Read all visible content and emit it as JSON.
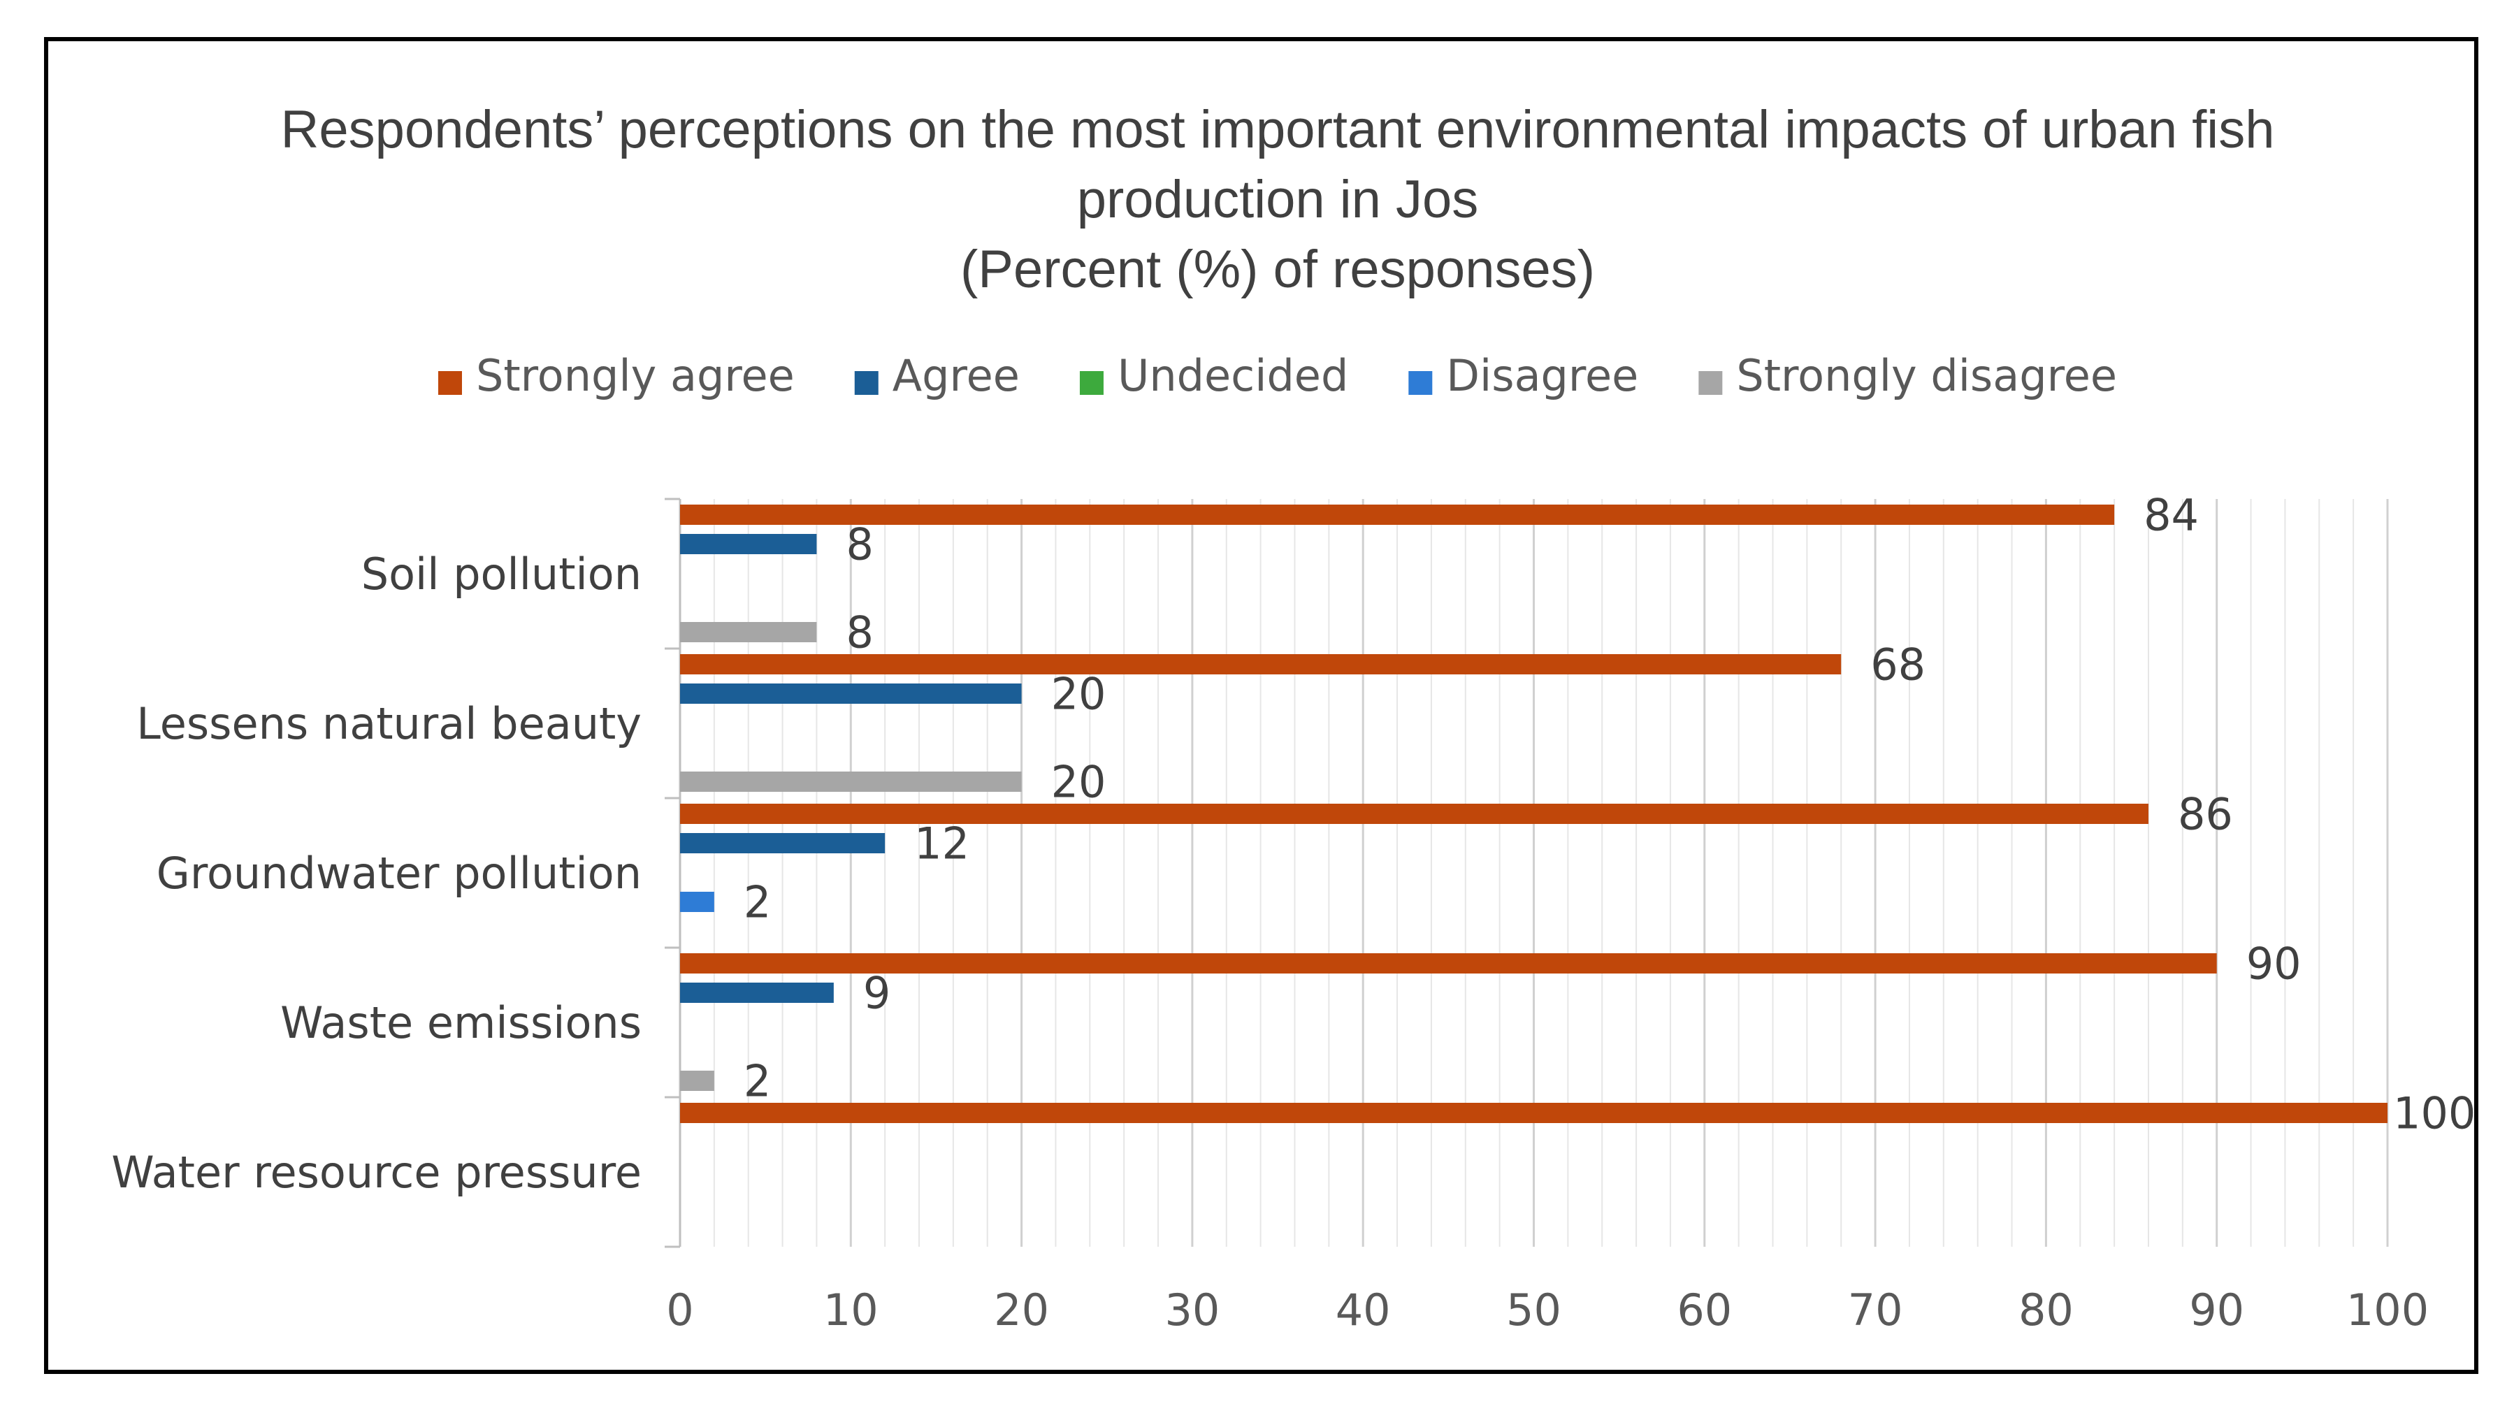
{
  "chart_data": {
    "type": "bar",
    "orientation": "horizontal",
    "title_lines": [
      "Respondents’ perceptions on the most important environmental impacts of urban fish",
      "production in Jos",
      "(Percent (%) of responses)"
    ],
    "categories": [
      "Soil pollution",
      "Lessens natural beauty",
      "Groundwater pollution",
      "Waste emissions",
      "Water resource pressure"
    ],
    "series": [
      {
        "name": "Strongly agree",
        "color": "#C0470A",
        "values": [
          84,
          68,
          86,
          90,
          100
        ]
      },
      {
        "name": "Agree",
        "color": "#1B5E96",
        "values": [
          8,
          20,
          12,
          9,
          null
        ]
      },
      {
        "name": "Undecided",
        "color": "#3DAA3D",
        "values": [
          null,
          null,
          null,
          null,
          null
        ]
      },
      {
        "name": "Disagree",
        "color": "#2E7CD6",
        "values": [
          null,
          null,
          2,
          null,
          null
        ]
      },
      {
        "name": "Strongly disagree",
        "color": "#A6A6A6",
        "values": [
          8,
          20,
          null,
          2,
          null
        ]
      }
    ],
    "xlim": [
      0,
      100
    ],
    "x_ticks": [
      "0",
      "10",
      "20",
      "30",
      "40",
      "50",
      "60",
      "70",
      "80",
      "90",
      "100"
    ],
    "x_major_step": 10,
    "x_minor_step": 2,
    "xlabel": "",
    "ylabel": "",
    "legend_position": "top",
    "grid": true
  }
}
